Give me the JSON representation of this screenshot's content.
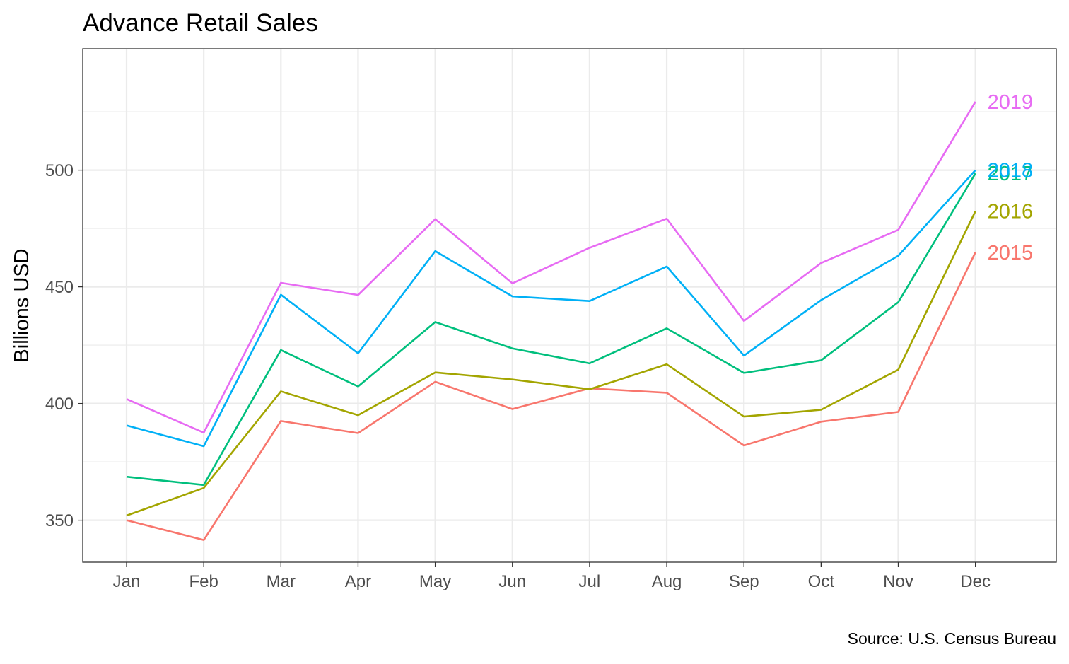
{
  "chart_data": {
    "type": "line",
    "title": "Advance Retail Sales",
    "xlabel": "",
    "ylabel": "Billions USD",
    "caption": "Source: U.S. Census Bureau",
    "categories": [
      "Jan",
      "Feb",
      "Mar",
      "Apr",
      "May",
      "Jun",
      "Jul",
      "Aug",
      "Sep",
      "Oct",
      "Nov",
      "Dec"
    ],
    "ylim": [
      332,
      552
    ],
    "yticks": [
      350,
      400,
      450,
      500
    ],
    "grid": true,
    "legend": "direct labels at line ends",
    "series": [
      {
        "name": "2015",
        "color": "#F8766D",
        "values": [
          350,
          341.5,
          392.5,
          387.3,
          409.3,
          397.6,
          406.5,
          404.6,
          382,
          392.2,
          396.4,
          464.8
        ]
      },
      {
        "name": "2016",
        "color": "#A3A500",
        "values": [
          352,
          363.8,
          405.2,
          395,
          413.3,
          410.3,
          406.1,
          416.8,
          394.4,
          397.3,
          414.5,
          482.4
        ]
      },
      {
        "name": "2017",
        "color": "#00BF7D",
        "values": [
          368.6,
          365.1,
          422.9,
          407.3,
          434.9,
          423.6,
          417.2,
          432.2,
          413.1,
          418.5,
          443.4,
          498.6
        ]
      },
      {
        "name": "2018",
        "color": "#00B0F6",
        "values": [
          390.6,
          381.7,
          446.6,
          421.5,
          465.3,
          445.9,
          443.9,
          458.7,
          420.5,
          444.3,
          463.3,
          500
        ]
      },
      {
        "name": "2019",
        "color": "#E76BF3",
        "values": [
          401.9,
          387.5,
          451.7,
          446.5,
          479,
          451.5,
          466.7,
          479.2,
          435.4,
          460.2,
          474.4,
          529.3
        ]
      }
    ]
  }
}
